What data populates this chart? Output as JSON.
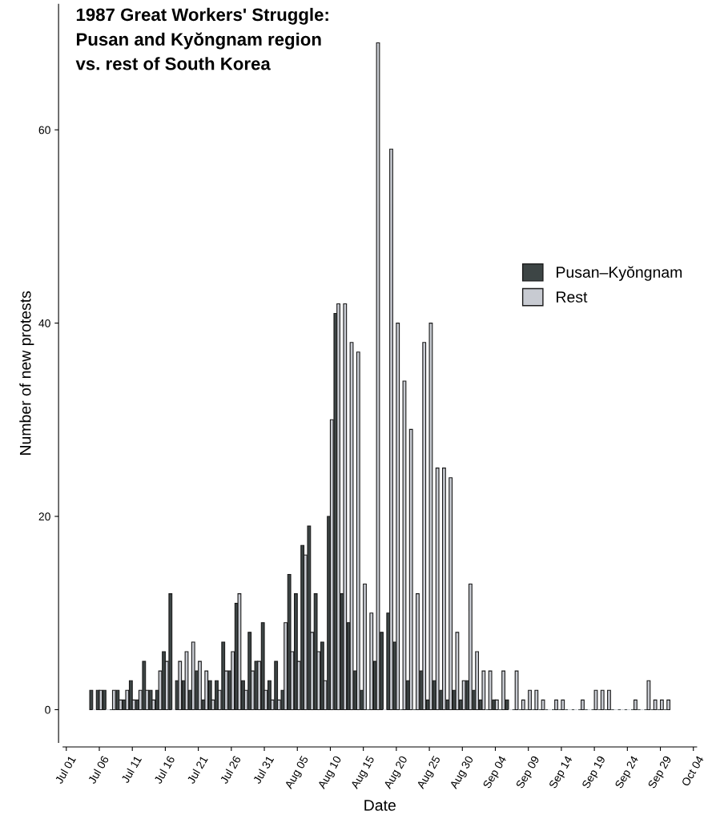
{
  "chart_data": {
    "type": "bar",
    "title": "1987 Great Workers' Struggle:\nPusan and Kyŏngnam region\nvs. rest of South Korea",
    "xlabel": "Date",
    "ylabel": "Number of new protests",
    "x": [
      "1987-07-05",
      "1987-07-06",
      "1987-07-07",
      "1987-07-08",
      "1987-07-09",
      "1987-07-10",
      "1987-07-11",
      "1987-07-12",
      "1987-07-13",
      "1987-07-14",
      "1987-07-15",
      "1987-07-16",
      "1987-07-17",
      "1987-07-18",
      "1987-07-19",
      "1987-07-20",
      "1987-07-21",
      "1987-07-22",
      "1987-07-23",
      "1987-07-24",
      "1987-07-25",
      "1987-07-26",
      "1987-07-27",
      "1987-07-28",
      "1987-07-29",
      "1987-07-30",
      "1987-07-31",
      "1987-08-01",
      "1987-08-02",
      "1987-08-03",
      "1987-08-04",
      "1987-08-05",
      "1987-08-06",
      "1987-08-07",
      "1987-08-08",
      "1987-08-09",
      "1987-08-10",
      "1987-08-11",
      "1987-08-12",
      "1987-08-13",
      "1987-08-14",
      "1987-08-15",
      "1987-08-16",
      "1987-08-17",
      "1987-08-18",
      "1987-08-19",
      "1987-08-20",
      "1987-08-21",
      "1987-08-22",
      "1987-08-23",
      "1987-08-24",
      "1987-08-25",
      "1987-08-26",
      "1987-08-27",
      "1987-08-28",
      "1987-08-29",
      "1987-08-30",
      "1987-08-31",
      "1987-09-01",
      "1987-09-02",
      "1987-09-03",
      "1987-09-04",
      "1987-09-05",
      "1987-09-06",
      "1987-09-07",
      "1987-09-08",
      "1987-09-09",
      "1987-09-10",
      "1987-09-11",
      "1987-09-12",
      "1987-09-13",
      "1987-09-14",
      "1987-09-15",
      "1987-09-16",
      "1987-09-17",
      "1987-09-18",
      "1987-09-19",
      "1987-09-20",
      "1987-09-21",
      "1987-09-22",
      "1987-09-23",
      "1987-09-24",
      "1987-09-25",
      "1987-09-26",
      "1987-09-27",
      "1987-09-28",
      "1987-09-29",
      "1987-09-30"
    ],
    "series": [
      {
        "name": "Pusan–Kyŏngnam",
        "color": "#3d4545",
        "values": [
          2,
          2,
          2,
          0,
          2,
          1,
          3,
          1,
          5,
          2,
          2,
          6,
          12,
          3,
          3,
          2,
          4,
          1,
          3,
          3,
          7,
          4,
          11,
          3,
          8,
          5,
          9,
          3,
          5,
          2,
          14,
          12,
          17,
          19,
          12,
          7,
          20,
          41,
          12,
          9,
          4,
          2,
          0,
          5,
          8,
          10,
          7,
          0,
          3,
          0,
          4,
          1,
          3,
          2,
          1,
          2,
          1,
          3,
          2,
          1,
          0,
          1,
          0,
          1,
          0,
          0,
          0,
          0,
          0,
          0,
          0,
          0,
          0,
          0,
          0,
          0,
          0,
          0,
          0,
          0,
          0,
          0,
          0,
          0,
          0,
          0,
          0,
          0
        ]
      },
      {
        "name": "Rest",
        "color": "#c8cbd2",
        "values": [
          0,
          2,
          0,
          2,
          1,
          2,
          1,
          2,
          2,
          1,
          4,
          5,
          0,
          5,
          6,
          7,
          5,
          4,
          1,
          2,
          4,
          6,
          12,
          2,
          4,
          5,
          2,
          1,
          1,
          9,
          6,
          5,
          16,
          8,
          6,
          3,
          30,
          42,
          42,
          38,
          37,
          13,
          10,
          69,
          0,
          58,
          40,
          34,
          29,
          12,
          38,
          40,
          25,
          25,
          24,
          8,
          3,
          13,
          6,
          4,
          4,
          1,
          4,
          0,
          4,
          1,
          2,
          2,
          1,
          0,
          1,
          1,
          0,
          0,
          1,
          0,
          2,
          2,
          2,
          0,
          0,
          0,
          1,
          0,
          3,
          1,
          1,
          1
        ]
      }
    ],
    "ylim": [
      -3.4,
      73
    ],
    "yticks": [
      0,
      20,
      40,
      60
    ],
    "xlim": [
      "1987-06-30T12:00",
      "1987-10-04T12:00"
    ],
    "xticks": [
      {
        "value": "1987-07-01",
        "label": "Jul 01"
      },
      {
        "value": "1987-07-06",
        "label": "Jul 06"
      },
      {
        "value": "1987-07-11",
        "label": "Jul 11"
      },
      {
        "value": "1987-07-16",
        "label": "Jul 16"
      },
      {
        "value": "1987-07-21",
        "label": "Jul 21"
      },
      {
        "value": "1987-07-26",
        "label": "Jul 26"
      },
      {
        "value": "1987-07-31",
        "label": "Jul 31"
      },
      {
        "value": "1987-08-05",
        "label": "Aug 05"
      },
      {
        "value": "1987-08-10",
        "label": "Aug 10"
      },
      {
        "value": "1987-08-15",
        "label": "Aug 15"
      },
      {
        "value": "1987-08-20",
        "label": "Aug 20"
      },
      {
        "value": "1987-08-25",
        "label": "Aug 25"
      },
      {
        "value": "1987-08-30",
        "label": "Aug 30"
      },
      {
        "value": "1987-09-04",
        "label": "Sep 04"
      },
      {
        "value": "1987-09-09",
        "label": "Sep 09"
      },
      {
        "value": "1987-09-14",
        "label": "Sep 14"
      },
      {
        "value": "1987-09-19",
        "label": "Sep 19"
      },
      {
        "value": "1987-09-24",
        "label": "Sep 24"
      },
      {
        "value": "1987-09-29",
        "label": "Sep 29"
      },
      {
        "value": "1987-10-04",
        "label": "Oct 04"
      }
    ],
    "grid": false,
    "legend": "right"
  }
}
